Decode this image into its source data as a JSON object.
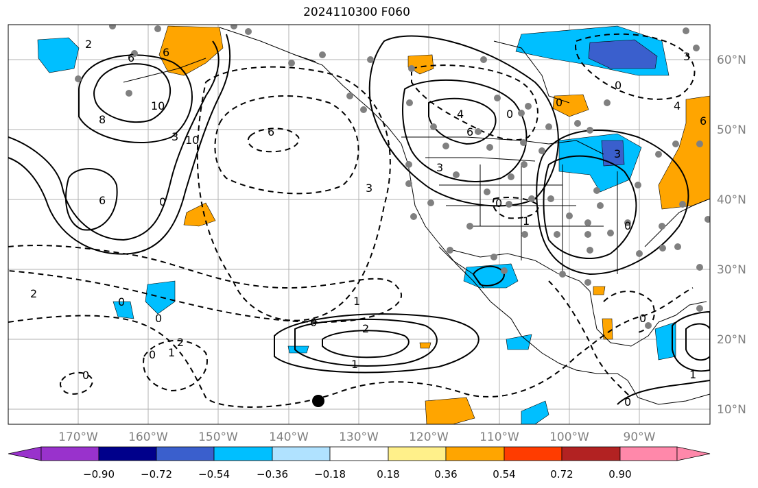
{
  "title": "2024110300 F060",
  "longitude_labels": [
    "170°W",
    "160°W",
    "150°W",
    "140°W",
    "130°W",
    "120°W",
    "110°W",
    "100°W",
    "90°W"
  ],
  "latitude_labels": [
    "60°N",
    "50°N",
    "40°N",
    "30°N",
    "20°N",
    "10°N"
  ],
  "colorbar": {
    "ticks": [
      "−0.90",
      "−0.72",
      "−0.54",
      "−0.36",
      "−0.18",
      "0.18",
      "0.36",
      "0.54",
      "0.72",
      "0.90"
    ],
    "colors": [
      "#9932cc",
      "#00008b",
      "#3a5fcd",
      "#00bfff",
      "#b0e2ff",
      "#ffffff",
      "#fff08a",
      "#ffa500",
      "#ff3c00",
      "#b22222",
      "#ff88aa"
    ]
  },
  "contour_labels": [
    "2",
    "6",
    "6",
    "10",
    "8",
    "6",
    "10",
    "3",
    "6",
    "3",
    "2",
    "0",
    "0",
    "2",
    "1",
    "0",
    "0",
    "1",
    "2",
    "1",
    "0",
    "0",
    "4",
    "6",
    "3",
    "0",
    "3",
    "0",
    "0",
    "0",
    "0",
    "1",
    "4",
    "6",
    "3",
    "0",
    "0",
    "1"
  ],
  "colors": {
    "positive_fill": "#ffa500",
    "negative_fill": "#00bfff",
    "strong_negative_fill": "#3a5fcd",
    "grid": "#b0b0b0",
    "coast": "#000000",
    "station_dot": "#808080"
  }
}
